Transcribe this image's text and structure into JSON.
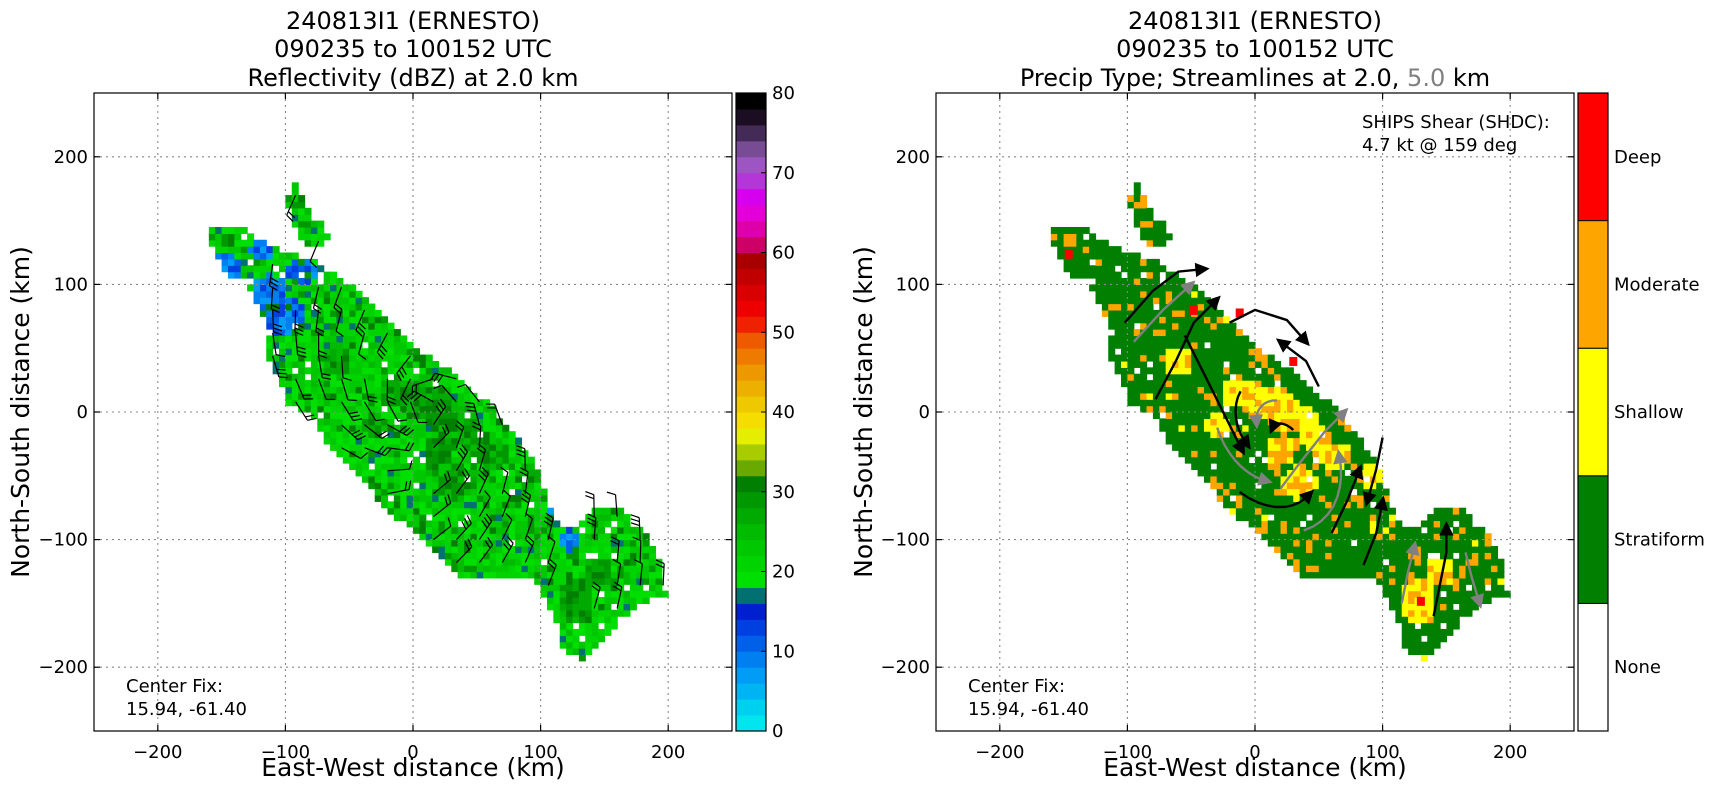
{
  "chart_data": [
    {
      "type": "heatmap",
      "title_lines": [
        "240813I1 (ERNESTO)",
        "090235 to 100152 UTC",
        "Reflectivity (dBZ) at 2.0 km"
      ],
      "xlabel": "East-West distance (km)",
      "ylabel": "North-South distance (km)",
      "xlim": [
        -250,
        250
      ],
      "ylim": [
        -250,
        250
      ],
      "xticks": [
        -200,
        -100,
        0,
        100,
        200
      ],
      "yticks": [
        -200,
        -100,
        0,
        100,
        200
      ],
      "xtick_labels": [
        "−200",
        "−100",
        "0",
        "100",
        "200"
      ],
      "ytick_labels": [
        "−200",
        "−100",
        "0",
        "100",
        "200"
      ],
      "grid": true,
      "annotation_lines": [
        "Center Fix:",
        "15.94, -61.40"
      ],
      "colorbar": {
        "vmin": 0,
        "vmax": 80,
        "step": 2.5,
        "tick_values": [
          0,
          10,
          20,
          30,
          40,
          50,
          60,
          70,
          80
        ],
        "tick_labels": [
          "0",
          "10",
          "20",
          "30",
          "40",
          "50",
          "60",
          "70",
          "80"
        ],
        "colors": [
          "#00e5ee",
          "#00d0f0",
          "#00b4f4",
          "#009cf5",
          "#0080f0",
          "#0060e8",
          "#0040e0",
          "#0020d0",
          "#007070",
          "#00e000",
          "#00d400",
          "#00c800",
          "#00bb00",
          "#00aa00",
          "#009800",
          "#007f00",
          "#6aaa00",
          "#a8cc00",
          "#e6ee00",
          "#f5dd00",
          "#eec800",
          "#eeb000",
          "#ee9800",
          "#ee7b00",
          "#ee5a00",
          "#ee2200",
          "#ee0000",
          "#d80000",
          "#c00000",
          "#a80000",
          "#cc0066",
          "#dd00aa",
          "#e300d8",
          "#d600ee",
          "#b436d8",
          "#9d55c4",
          "#774c94",
          "#442a57",
          "#1b0d22",
          "#000000"
        ]
      },
      "field": {
        "grid_spacing_km": 5,
        "region_polygon": [
          [
            -158,
            143
          ],
          [
            -132,
            144
          ],
          [
            -120,
            134
          ],
          [
            -105,
            128
          ],
          [
            -92,
            123
          ],
          [
            -82,
            120
          ],
          [
            -72,
            115
          ],
          [
            -60,
            107
          ],
          [
            -45,
            96
          ],
          [
            -32,
            86
          ],
          [
            -22,
            72
          ],
          [
            -4,
            55
          ],
          [
            14,
            43
          ],
          [
            35,
            28
          ],
          [
            48,
            15
          ],
          [
            62,
            4
          ],
          [
            76,
            -14
          ],
          [
            90,
            -32
          ],
          [
            100,
            -52
          ],
          [
            105,
            -72
          ],
          [
            116,
            -90
          ],
          [
            128,
            -88
          ],
          [
            145,
            -72
          ],
          [
            168,
            -78
          ],
          [
            185,
            -98
          ],
          [
            196,
            -125
          ],
          [
            198,
            -143
          ],
          [
            178,
            -150
          ],
          [
            162,
            -162
          ],
          [
            150,
            -180
          ],
          [
            132,
            -194
          ],
          [
            118,
            -186
          ],
          [
            110,
            -158
          ],
          [
            95,
            -133
          ],
          [
            80,
            -128
          ],
          [
            58,
            -132
          ],
          [
            36,
            -128
          ],
          [
            8,
            -98
          ],
          [
            -18,
            -80
          ],
          [
            -40,
            -52
          ],
          [
            -58,
            -36
          ],
          [
            -76,
            -12
          ],
          [
            -90,
            0
          ],
          [
            -100,
            8
          ],
          [
            -105,
            28
          ],
          [
            -118,
            50
          ],
          [
            -112,
            62
          ],
          [
            -118,
            76
          ],
          [
            -124,
            86
          ],
          [
            -126,
            94
          ],
          [
            -136,
            102
          ],
          [
            -148,
            108
          ],
          [
            -152,
            120
          ],
          [
            -158,
            130
          ]
        ],
        "spur_polygon": [
          [
            -97,
            178
          ],
          [
            -90,
            178
          ],
          [
            -84,
            160
          ],
          [
            -74,
            150
          ],
          [
            -66,
            138
          ],
          [
            -74,
            128
          ],
          [
            -84,
            128
          ],
          [
            -90,
            140
          ],
          [
            -98,
            160
          ]
        ],
        "low_patches": [
          [
            -146,
            110,
            12,
            16
          ],
          [
            -112,
            94,
            14,
            14
          ],
          [
            -100,
            76,
            16,
            16
          ],
          [
            -88,
            110,
            12,
            12
          ],
          [
            -118,
            128,
            10,
            8
          ],
          [
            118,
            -78,
            12,
            10
          ],
          [
            122,
            -100,
            8,
            8
          ]
        ],
        "core_patches": [
          [
            -12,
            15,
            16,
            10
          ],
          [
            12,
            8,
            22,
            12
          ],
          [
            30,
            -5,
            20,
            12
          ],
          [
            48,
            -20,
            14,
            10
          ],
          [
            62,
            -34,
            14,
            10
          ],
          [
            20,
            -30,
            12,
            10
          ],
          [
            36,
            -55,
            14,
            12
          ],
          [
            -30,
            -10,
            10,
            10
          ],
          [
            -60,
            40,
            12,
            10
          ],
          [
            128,
            -148,
            14,
            20
          ],
          [
            145,
            -125,
            10,
            12
          ],
          [
            90,
            -50,
            8,
            8
          ]
        ]
      },
      "wind_barbs": true
    },
    {
      "type": "heatmap",
      "title_lines": [
        "240813I1 (ERNESTO)",
        "090235 to 100152 UTC",
        "Precip Type; Streamlines at 2.0, ",
        "5.0",
        " km"
      ],
      "xlabel": "East-West distance (km)",
      "ylabel": "North-South distance (km)",
      "xlim": [
        -250,
        250
      ],
      "ylim": [
        -250,
        250
      ],
      "xticks": [
        -200,
        -100,
        0,
        100,
        200
      ],
      "yticks": [
        -200,
        -100,
        0,
        100,
        200
      ],
      "xtick_labels": [
        "−200",
        "−100",
        "0",
        "100",
        "200"
      ],
      "ytick_labels": [
        "−200",
        "−100",
        "0",
        "100",
        "200"
      ],
      "grid": true,
      "annotation_lines": [
        "Center Fix:",
        "15.94, -61.40"
      ],
      "shear_lines": [
        "SHIPS Shear (SHDC):",
        "4.7 kt @ 159 deg"
      ],
      "categories": [
        "None",
        "Stratiform",
        "Shallow",
        "Moderate",
        "Deep"
      ],
      "category_colors": [
        "#ffffff",
        "#007f00",
        "#ffff00",
        "#ffa500",
        "#ff0000"
      ],
      "streamline_colors": {
        "2.0 km": "#000000",
        "5.0 km": "#808080"
      },
      "deep_points": [
        [
          -146,
          124
        ],
        [
          -48,
          80
        ],
        [
          -12,
          78
        ],
        [
          30,
          40
        ],
        [
          130,
          -148
        ]
      ]
    }
  ]
}
